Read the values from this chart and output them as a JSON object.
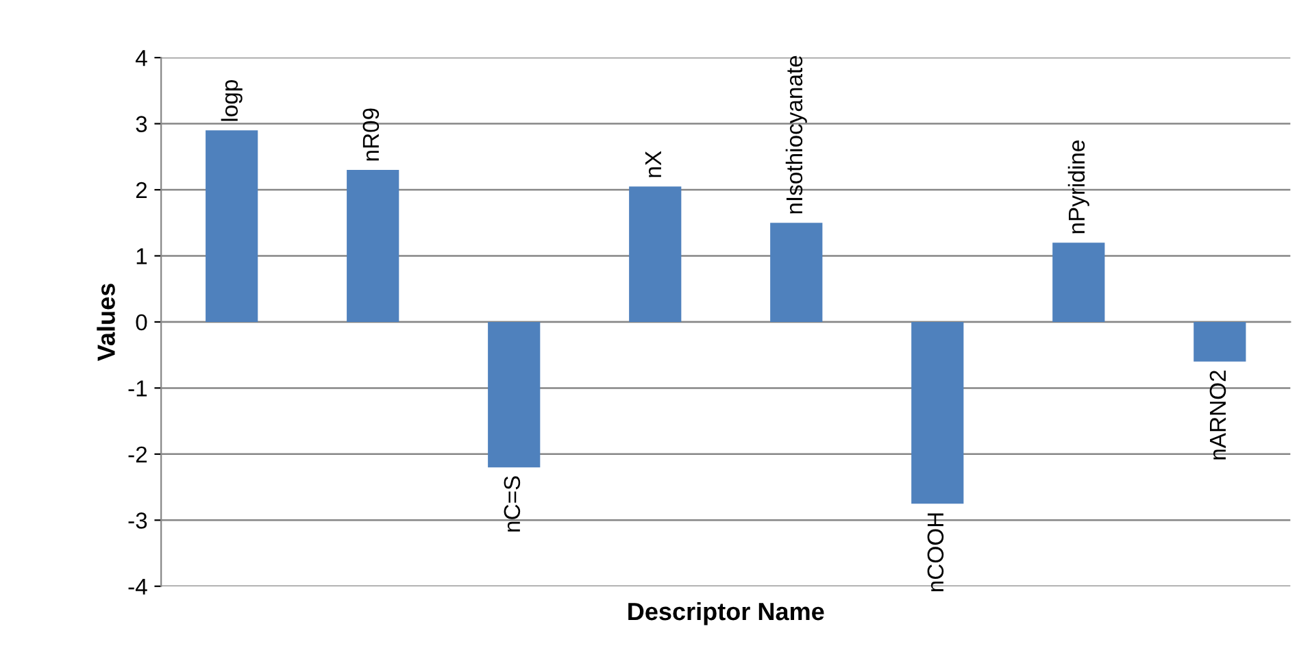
{
  "chart_data": {
    "type": "bar",
    "xlabel": "Descriptor Name",
    "ylabel": "Values",
    "categories": [
      "logp",
      "nR09",
      "nC=S",
      "nX",
      "nIsothiocyanate",
      "nCOOH",
      "nPyridine",
      "nARNO2"
    ],
    "values": [
      2.9,
      2.3,
      -2.2,
      2.05,
      1.5,
      -2.75,
      1.2,
      -0.6
    ],
    "color": "#4f81bd",
    "ylim": [
      -4,
      4
    ],
    "yticks": [
      -4,
      -3,
      -2,
      -1,
      0,
      1,
      2,
      3,
      4
    ],
    "grid": "y",
    "legend": false
  }
}
